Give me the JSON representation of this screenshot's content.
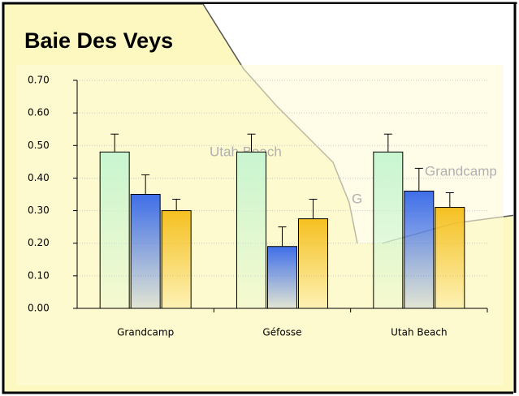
{
  "chart_data": {
    "type": "bar",
    "title": "Baie Des Veys",
    "categories": [
      "Grandcamp",
      "Géfosse",
      "Utah Beach"
    ],
    "series": [
      {
        "color": "#c8f5d0",
        "values": [
          0.48,
          0.48,
          0.48
        ],
        "errors": [
          0.055,
          0.055,
          0.055
        ]
      },
      {
        "color": "#3f6ee8",
        "values": [
          0.35,
          0.19,
          0.36
        ],
        "errors": [
          0.06,
          0.06,
          0.07
        ]
      },
      {
        "color": "#f5c020",
        "values": [
          0.3,
          0.275,
          0.31
        ],
        "errors": [
          0.035,
          0.06,
          0.045
        ]
      }
    ],
    "ylim": [
      0,
      0.7
    ],
    "yticks": [
      {
        "value": 0,
        "label": "0.00"
      },
      {
        "value": 0.1,
        "label": "0.10"
      },
      {
        "value": 0.2,
        "label": "0.20"
      },
      {
        "value": 0.3,
        "label": "0.30"
      },
      {
        "value": 0.4,
        "label": "0.40"
      },
      {
        "value": 0.5,
        "label": "0.50"
      },
      {
        "value": 0.6,
        "label": "0.60"
      },
      {
        "value": 0.7,
        "label": "0.70"
      }
    ],
    "grid": true
  },
  "map_labels": [
    "Utah Beach",
    "Grandcamp",
    "G"
  ]
}
